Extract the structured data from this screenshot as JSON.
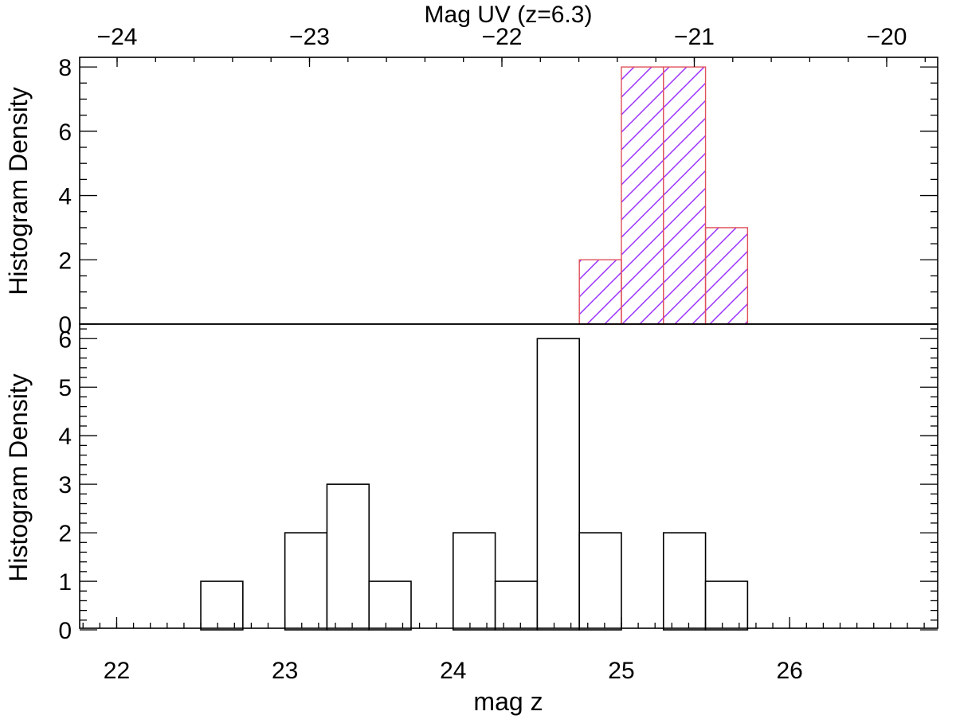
{
  "chart_data": [
    {
      "panel": "top",
      "type": "bar",
      "style": "hatched",
      "top_axis": {
        "label": "Mag UV (z=6.3)",
        "ticks": [
          "−24",
          "−23",
          "−22",
          "−21",
          "−20"
        ],
        "tick_values": [
          -24,
          -23,
          -22,
          -21,
          -20
        ]
      },
      "ylabel": "Histogram Density",
      "yticks": [
        "0",
        "2",
        "4",
        "6",
        "8"
      ],
      "ytick_values": [
        0,
        2,
        4,
        6,
        8
      ],
      "ylim": [
        0,
        8.3
      ],
      "bin_width": 0.25,
      "bins": [
        {
          "left": 24.75,
          "value": 2
        },
        {
          "left": 25.0,
          "value": 8
        },
        {
          "left": 25.25,
          "value": 8
        },
        {
          "left": 25.5,
          "value": 3
        }
      ],
      "colors": {
        "hatch": "#9b30ff",
        "edge": "#e0505a"
      }
    },
    {
      "panel": "bottom",
      "type": "bar",
      "style": "outline",
      "xlabel": "mag z",
      "ylabel": "Histogram Density",
      "xticks": [
        "22",
        "23",
        "24",
        "25",
        "26"
      ],
      "xtick_values": [
        22,
        23,
        24,
        25,
        26
      ],
      "xlim": [
        21.78,
        26.88
      ],
      "yticks": [
        "0",
        "1",
        "2",
        "3",
        "4",
        "5",
        "6"
      ],
      "ytick_values": [
        0,
        1,
        2,
        3,
        4,
        5,
        6
      ],
      "ylim": [
        0,
        6.3
      ],
      "bin_width": 0.25,
      "bins": [
        {
          "left": 22.5,
          "value": 1
        },
        {
          "left": 23.0,
          "value": 2
        },
        {
          "left": 23.25,
          "value": 3
        },
        {
          "left": 23.5,
          "value": 1
        },
        {
          "left": 24.0,
          "value": 2
        },
        {
          "left": 24.25,
          "value": 1
        },
        {
          "left": 24.5,
          "value": 6
        },
        {
          "left": 24.75,
          "value": 2
        },
        {
          "left": 25.25,
          "value": 2
        },
        {
          "left": 25.5,
          "value": 1
        }
      ]
    }
  ]
}
